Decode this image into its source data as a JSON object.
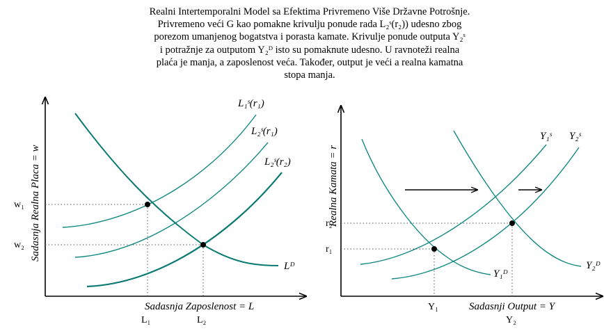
{
  "caption": [
    "Realni Intertemporalni Model sa Efektima Privremeno Više Državne Potrošnje.",
    "Privremeno veći G kao pomakne krivulju ponude rada L₂ˢ(r₂)) udesno zbog",
    "porezom umanjenog bogatstva i porasta kamate. Krivulje ponude outputa Y₂ˢ",
    "i potražnje za outputom Y₂ᴰ isto su pomaknute udesno. U ravnoteži realna",
    "plaća je manja, a zaposlenost veća. Također, output je veći a realna kamatna",
    "stopa manja."
  ],
  "colors": {
    "curve": "#138a82",
    "curve_dark": "#0b7a72",
    "axis": "#000000",
    "guide": "#555555"
  },
  "left_panel": {
    "y_axis_label": "Sadasnja Realna Placa = w",
    "x_axis_label": "Sadasnja Zaposlenost = L",
    "y_ticks": [
      "w₁",
      "w₂"
    ],
    "x_ticks": [
      "L₁",
      "L₂"
    ],
    "curves": {
      "ls1": "L₁ˢ(r₁)",
      "ls2": "L₂ˢ(r₁)",
      "ls3": "L₂ˢ(r₂)",
      "ld": "Lᴰ"
    }
  },
  "right_panel": {
    "y_axis_label": "Realna Kamata = r",
    "x_axis_label": "Sadasnji Output = Y",
    "y_ticks": [
      "r₂",
      "r₁"
    ],
    "x_ticks": [
      "Y₁",
      "Y₂"
    ],
    "curves": {
      "ys1": "Y₁ˢ",
      "ys2": "Y₂ˢ",
      "yd1": "Y₁ᴰ",
      "yd2": "Y₂ᴰ"
    }
  }
}
